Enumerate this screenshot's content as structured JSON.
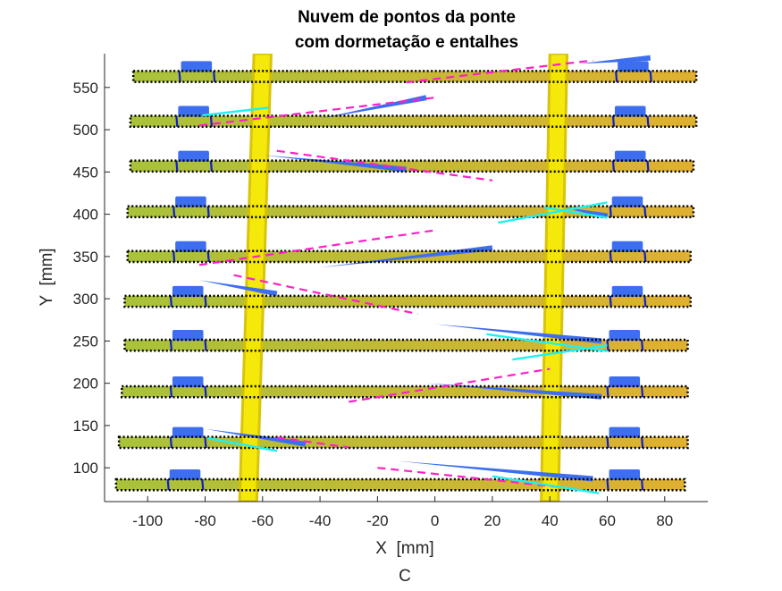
{
  "chart_data": {
    "type": "scatter",
    "title": [
      "Nuvem de pontos da ponte",
      "com dormetação e entalhes"
    ],
    "xlabel": "X  [mm]",
    "ylabel": "Y  [mm]",
    "caption": "C",
    "xlim": [
      -115,
      95
    ],
    "ylim": [
      60,
      590
    ],
    "xticks": [
      -100,
      -80,
      -60,
      -40,
      -20,
      0,
      20,
      40,
      60,
      80
    ],
    "yticks": [
      100,
      150,
      200,
      250,
      300,
      350,
      400,
      450,
      500,
      550
    ],
    "grid": false,
    "colors": {
      "sleeper_left": "#a8c23a",
      "sleeper_right": "#e0b030",
      "rail": "#f5e800",
      "rail_edge": "#d8c000",
      "blue_cloud": "#3d6ef0",
      "notch_line": "#1020c8",
      "magenta_dash": "#ff20c8",
      "cyan_line": "#20f0f0",
      "box_outline": "#000000"
    },
    "sleepers": [
      {
        "y": 80,
        "x0": -111,
        "x1": 87,
        "notch_left": [
          -93,
          -81
        ],
        "notch_right": [
          60,
          72
        ]
      },
      {
        "y": 130,
        "x0": -110,
        "x1": 88,
        "notch_left": [
          -92,
          -80
        ],
        "notch_right": [
          60,
          72
        ]
      },
      {
        "y": 190,
        "x0": -109,
        "x1": 88,
        "notch_left": [
          -92,
          -80
        ],
        "notch_right": [
          60,
          72
        ]
      },
      {
        "y": 245,
        "x0": -108,
        "x1": 88,
        "notch_left": [
          -92,
          -80
        ],
        "notch_right": [
          60,
          72
        ]
      },
      {
        "y": 297,
        "x0": -108,
        "x1": 89,
        "notch_left": [
          -92,
          -80
        ],
        "notch_right": [
          61,
          73
        ]
      },
      {
        "y": 350,
        "x0": -107,
        "x1": 89,
        "notch_left": [
          -91,
          -79
        ],
        "notch_right": [
          61,
          73
        ]
      },
      {
        "y": 403,
        "x0": -107,
        "x1": 90,
        "notch_left": [
          -91,
          -79
        ],
        "notch_right": [
          61,
          73
        ]
      },
      {
        "y": 457,
        "x0": -106,
        "x1": 90,
        "notch_left": [
          -90,
          -78
        ],
        "notch_right": [
          62,
          74
        ]
      },
      {
        "y": 510,
        "x0": -106,
        "x1": 91,
        "notch_left": [
          -90,
          -78
        ],
        "notch_right": [
          62,
          74
        ]
      },
      {
        "y": 563,
        "x0": -105,
        "x1": 91,
        "notch_left": [
          -89,
          -77
        ],
        "notch_right": [
          63,
          75
        ]
      }
    ],
    "rails": [
      {
        "x_bottom": -65,
        "x_top": -60,
        "width": 6
      },
      {
        "x_bottom": 40,
        "x_top": 43,
        "width": 6
      }
    ],
    "blue_streaks": [
      [
        [
          -13,
          108
        ],
        [
          55,
          87
        ]
      ],
      [
        [
          -80,
          146
        ],
        [
          -45,
          128
        ]
      ],
      [
        [
          -3,
          200
        ],
        [
          58,
          184
        ]
      ],
      [
        [
          0,
          270
        ],
        [
          58,
          250
        ]
      ],
      [
        [
          -82,
          322
        ],
        [
          -55,
          306
        ]
      ],
      [
        [
          -40,
          337
        ],
        [
          20,
          360
        ]
      ],
      [
        [
          -60,
          470
        ],
        [
          -10,
          453
        ]
      ],
      [
        [
          -40,
          513
        ],
        [
          -3,
          538
        ]
      ],
      [
        [
          45,
          408
        ],
        [
          60,
          398
        ]
      ],
      [
        [
          50,
          578
        ],
        [
          75,
          585
        ]
      ]
    ],
    "magenta_dashed": [
      [
        [
          -55,
          136
        ],
        [
          -30,
          124
        ]
      ],
      [
        [
          -20,
          100
        ],
        [
          44,
          77
        ]
      ],
      [
        [
          -30,
          178
        ],
        [
          40,
          217
        ]
      ],
      [
        [
          -70,
          328
        ],
        [
          -6,
          282
        ]
      ],
      [
        [
          -82,
          340
        ],
        [
          0,
          381
        ]
      ],
      [
        [
          -55,
          475
        ],
        [
          20,
          440
        ]
      ],
      [
        [
          -82,
          505
        ],
        [
          0,
          538
        ]
      ],
      [
        [
          -10,
          556
        ],
        [
          55,
          582
        ]
      ]
    ],
    "cyan_lines": [
      [
        [
          -79,
          135
        ],
        [
          -55,
          120
        ]
      ],
      [
        [
          20,
          90
        ],
        [
          57,
          70
        ]
      ],
      [
        [
          18,
          258
        ],
        [
          60,
          238
        ]
      ],
      [
        [
          27,
          228
        ],
        [
          60,
          245
        ]
      ],
      [
        [
          22,
          390
        ],
        [
          60,
          414
        ]
      ],
      [
        [
          38,
          408
        ],
        [
          60,
          396
        ]
      ],
      [
        [
          -81,
          517
        ],
        [
          -58,
          526
        ]
      ]
    ]
  }
}
